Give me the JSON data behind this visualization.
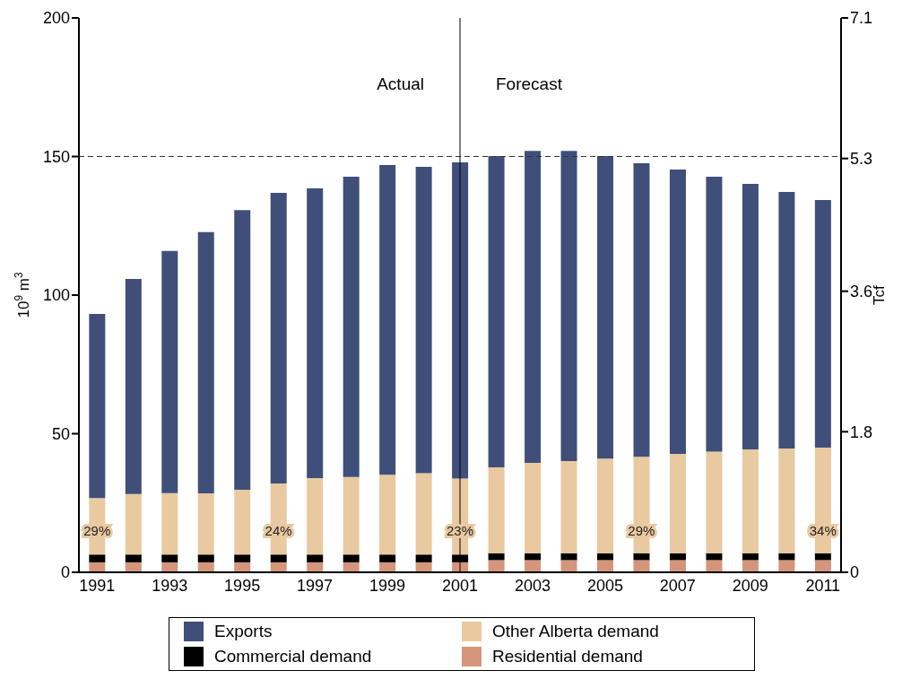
{
  "chart_data": {
    "type": "bar",
    "stacked": true,
    "ylabel": "10$^{9}$ m$^{3}$",
    "y2label": "Tcf",
    "categories": [
      "1991",
      null,
      "1993",
      null,
      "1995",
      null,
      "1997",
      null,
      "1999",
      null,
      "2001",
      null,
      "2003",
      null,
      "2005",
      null,
      "2007",
      null,
      "2009",
      null,
      "2011"
    ],
    "series": [
      {
        "name": "Residential demand",
        "color": "#d4957a",
        "values": [
          3.6,
          3.6,
          3.6,
          3.6,
          3.6,
          3.6,
          3.6,
          3.6,
          3.6,
          3.6,
          3.6,
          4.4,
          4.4,
          4.4,
          4.4,
          4.4,
          4.4,
          4.4,
          4.4,
          4.4,
          4.4
        ]
      },
      {
        "name": "Commercial demand",
        "color": "#000000",
        "values": [
          2.8,
          2.8,
          2.8,
          2.8,
          2.8,
          2.8,
          2.8,
          2.8,
          2.8,
          2.8,
          2.8,
          2.5,
          2.5,
          2.5,
          2.5,
          2.5,
          2.5,
          2.5,
          2.5,
          2.5,
          2.5
        ]
      },
      {
        "name": "Other Alberta demand",
        "color": "#e9c9a0",
        "values": [
          20.4,
          21.8,
          22.2,
          22.1,
          23.4,
          25.6,
          27.6,
          28.0,
          28.8,
          29.4,
          27.4,
          31.0,
          32.6,
          33.2,
          34.1,
          34.8,
          35.8,
          36.6,
          37.4,
          37.8,
          38.1
        ]
      },
      {
        "name": "Exports",
        "color": "#3f4f7a",
        "values": [
          66.4,
          77.6,
          87.3,
          94.2,
          100.9,
          104.9,
          104.5,
          108.3,
          111.7,
          110.5,
          114.1,
          112.3,
          112.5,
          111.9,
          109.2,
          105.9,
          102.6,
          99.2,
          95.8,
          92.5,
          89.3
        ]
      }
    ],
    "ylim": [
      0,
      200
    ],
    "yticks": [
      0,
      50,
      100,
      150,
      200
    ],
    "y2lim": [
      0,
      7.1
    ],
    "y2ticks": [
      0,
      1.8,
      3.6,
      5.3,
      7.1
    ],
    "ref_lines": [
      {
        "axis": "y",
        "value": 150,
        "line_style": "dashed",
        "color": "#333333"
      },
      {
        "axis": "x",
        "value": "2001",
        "line_style": "solid",
        "color": "#000000"
      }
    ],
    "annotations": [
      "Actual",
      "Forecast",
      "29%",
      "24%",
      "23%",
      "29%",
      "34%"
    ],
    "legend": "bottom",
    "grid": false
  }
}
